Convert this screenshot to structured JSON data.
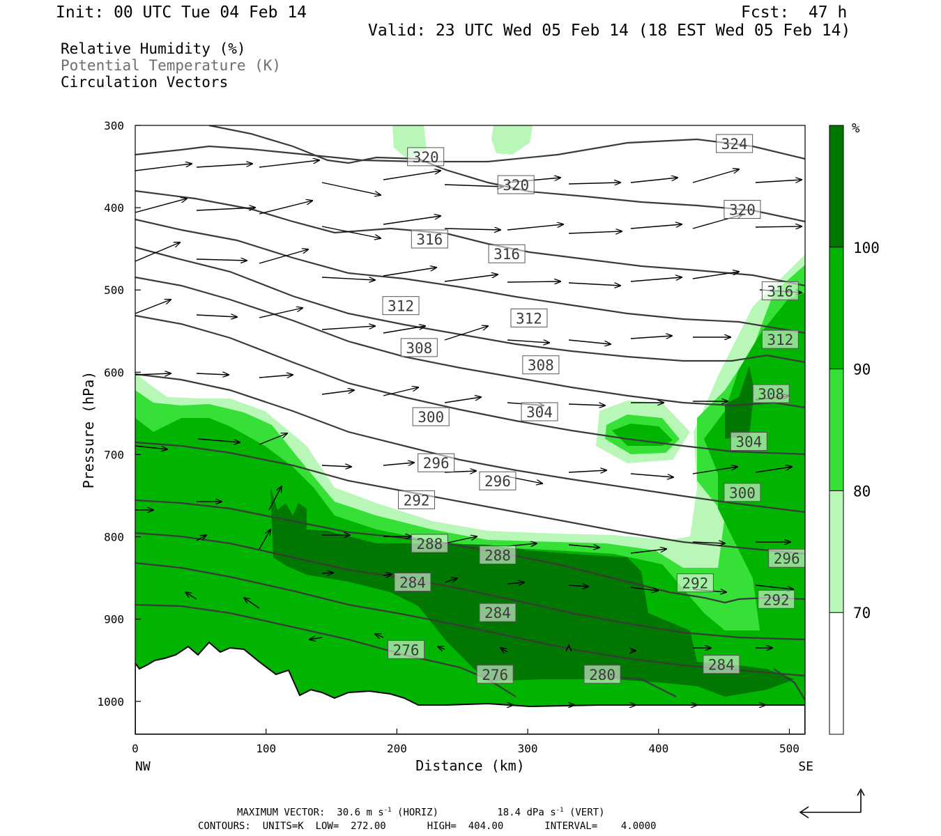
{
  "header": {
    "init": "Init: 00 UTC Tue 04 Feb 14",
    "fcst": "Fcst:  47 h",
    "valid": "Valid: 23 UTC Wed 05 Feb 14 (18 EST Wed 05 Feb 14)"
  },
  "legend": {
    "line1": "Relative Humidity (%)",
    "line2": "Potential Temperature (K)",
    "line3": "Circulation Vectors"
  },
  "footer": {
    "max_vector_label": "MAXIMUM VECTOR:",
    "max_horiz_value": "30.6",
    "max_horiz_units": "m s",
    "exp": "-1",
    "max_horiz_tag": "(HORIZ)",
    "max_vert_value": "18.4",
    "max_vert_units": "dPa s",
    "max_vert_tag": "(VERT)",
    "contours": "CONTOURS:  UNITS=K  LOW=  272.00       HIGH=  404.00       INTERVAL=    4.0000"
  },
  "chart_data": {
    "type": "contour",
    "xlabel": "Distance (km)",
    "ylabel": "Pressure (hPa)",
    "x_ticks": [
      0,
      100,
      200,
      300,
      400,
      500
    ],
    "y_ticks": [
      300,
      400,
      500,
      600,
      700,
      800,
      900,
      1000
    ],
    "xlim": [
      0,
      512
    ],
    "ylim": [
      1040,
      300
    ],
    "x_end_labels": {
      "left": "NW",
      "right": "SE"
    },
    "colorbar": {
      "unit_label": "%",
      "levels": [
        70,
        80,
        90,
        100
      ],
      "colors": [
        "#ffffff",
        "#b8f7b8",
        "#36e036",
        "#00b400",
        "#007800"
      ]
    },
    "theta_labels": [
      {
        "text": "324",
        "x": 458,
        "p": 322
      },
      {
        "text": "320",
        "x": 222,
        "p": 338
      },
      {
        "text": "320",
        "x": 291,
        "p": 372
      },
      {
        "text": "320",
        "x": 464,
        "p": 402
      },
      {
        "text": "316",
        "x": 225,
        "p": 438
      },
      {
        "text": "316",
        "x": 284,
        "p": 456
      },
      {
        "text": "316",
        "x": 493,
        "p": 501
      },
      {
        "text": "312",
        "x": 203,
        "p": 519
      },
      {
        "text": "312",
        "x": 301,
        "p": 534
      },
      {
        "text": "312",
        "x": 493,
        "p": 560
      },
      {
        "text": "308",
        "x": 217,
        "p": 570
      },
      {
        "text": "308",
        "x": 310,
        "p": 591
      },
      {
        "text": "308",
        "x": 486,
        "p": 626
      },
      {
        "text": "304",
        "x": 309,
        "p": 648
      },
      {
        "text": "304",
        "x": 469,
        "p": 684
      },
      {
        "text": "300",
        "x": 226,
        "p": 654
      },
      {
        "text": "300",
        "x": 464,
        "p": 746
      },
      {
        "text": "296",
        "x": 230,
        "p": 710
      },
      {
        "text": "296",
        "x": 277,
        "p": 732
      },
      {
        "text": "296",
        "x": 498,
        "p": 826
      },
      {
        "text": "292",
        "x": 215,
        "p": 755
      },
      {
        "text": "292",
        "x": 428,
        "p": 856
      },
      {
        "text": "292",
        "x": 490,
        "p": 876
      },
      {
        "text": "288",
        "x": 225,
        "p": 808
      },
      {
        "text": "288",
        "x": 277,
        "p": 822
      },
      {
        "text": "284",
        "x": 212,
        "p": 855
      },
      {
        "text": "284",
        "x": 277,
        "p": 892
      },
      {
        "text": "284",
        "x": 448,
        "p": 955
      },
      {
        "text": "280",
        "x": 357,
        "p": 967
      },
      {
        "text": "276",
        "x": 207,
        "p": 937
      },
      {
        "text": "276",
        "x": 275,
        "p": 967
      }
    ]
  }
}
